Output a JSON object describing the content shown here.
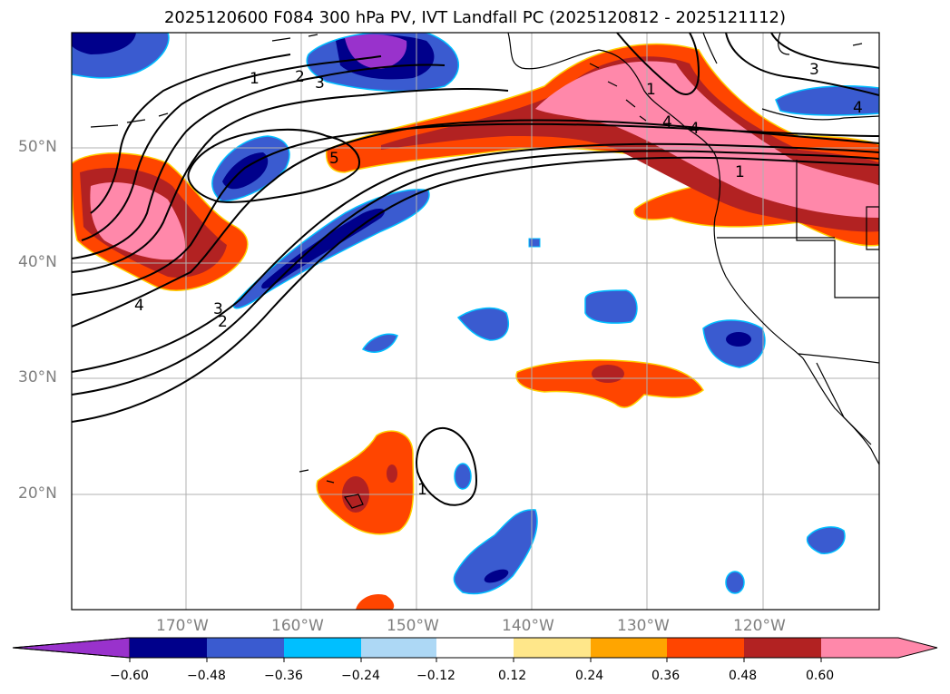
{
  "title": "2025120600 F084 300 hPa PV, IVT Landfall PC (2025120812 - 2025121112)",
  "lat_labels": [
    "50°N",
    "40°N",
    "30°N",
    "20°N"
  ],
  "lon_labels": [
    "170°W",
    "160°W",
    "150°W",
    "140°W",
    "130°W",
    "120°W"
  ],
  "colorbar": {
    "colors": [
      "#9932cc",
      "#00008b",
      "#3a5bd0",
      "#00bfff",
      "#add8f5",
      "#ffffff",
      "#ffe78a",
      "#ffa500",
      "#ff4500",
      "#b22222",
      "#ff88aa"
    ],
    "tick_labels": [
      "−0.60",
      "−0.48",
      "−0.36",
      "−0.24",
      "−0.12",
      "0.12",
      "0.24",
      "0.36",
      "0.48",
      "0.60"
    ]
  },
  "contour_labels": [
    "1",
    "2",
    "3",
    "3",
    "4",
    "4",
    "5",
    "1",
    "4",
    "1",
    "3",
    "2",
    "4",
    "1"
  ],
  "colors": {
    "coast": "#000000",
    "grid": "#b0b0b0"
  }
}
